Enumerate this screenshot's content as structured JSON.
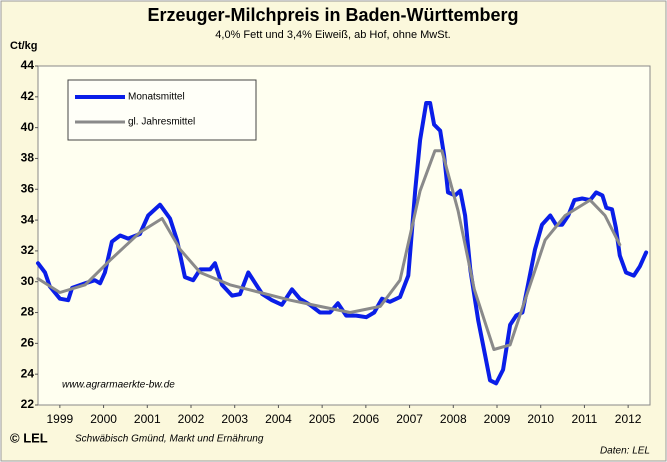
{
  "chart_data": {
    "type": "line",
    "title": "Erzeuger-Milchpreis in Baden-Württemberg",
    "subtitle": "4,0% Fett und 3,4% Eiweiß, ab Hof, ohne MwSt.",
    "y_label": "Ct/kg",
    "source_url": "www.agrarmaerkte-bw.de",
    "logo": "© LEL",
    "publisher": "Schwäbisch Gmünd, Markt und Ernährung",
    "source": "Daten: LEL",
    "legend": "top-left",
    "grid": false,
    "xlim": [
      1999,
      2013
    ],
    "xticks": [
      {
        "value": 1999.5,
        "label": "1999"
      },
      {
        "value": 2000.5,
        "label": "2000"
      },
      {
        "value": 2001.5,
        "label": "2001"
      },
      {
        "value": 2002.5,
        "label": "2002"
      },
      {
        "value": 2003.5,
        "label": "2003"
      },
      {
        "value": 2004.5,
        "label": "2004"
      },
      {
        "value": 2005.5,
        "label": "2005"
      },
      {
        "value": 2006.5,
        "label": "2006"
      },
      {
        "value": 2007.5,
        "label": "2007"
      },
      {
        "value": 2008.5,
        "label": "2008"
      },
      {
        "value": 2009.5,
        "label": "2009"
      },
      {
        "value": 2010.5,
        "label": "2010"
      },
      {
        "value": 2011.5,
        "label": "2011"
      },
      {
        "value": 2012.5,
        "label": "2012"
      }
    ],
    "ylim": [
      22,
      44
    ],
    "yticks": [
      22,
      24,
      26,
      28,
      30,
      32,
      34,
      36,
      38,
      40,
      42,
      44
    ],
    "series": [
      {
        "name": "Monatsmittel",
        "color": "#0a1ee8",
        "width": 4,
        "x": [
          1999.0,
          1999.16,
          1999.27,
          1999.5,
          1999.69,
          1999.78,
          2000.08,
          2000.3,
          2000.42,
          2000.53,
          2000.69,
          2000.88,
          2001.06,
          2001.33,
          2001.52,
          2001.79,
          2002.02,
          2002.18,
          2002.36,
          2002.55,
          2002.71,
          2002.94,
          2003.05,
          2003.21,
          2003.44,
          2003.62,
          2003.81,
          2003.97,
          2004.13,
          2004.35,
          2004.58,
          2004.81,
          2004.99,
          2005.22,
          2005.45,
          2005.68,
          2005.86,
          2006.05,
          2006.28,
          2006.51,
          2006.69,
          2006.87,
          2007.05,
          2007.28,
          2007.47,
          2007.63,
          2007.74,
          2007.88,
          2007.97,
          2008.06,
          2008.2,
          2008.29,
          2008.38,
          2008.54,
          2008.66,
          2008.77,
          2008.89,
          2009.07,
          2009.23,
          2009.34,
          2009.48,
          2009.64,
          2009.8,
          2009.94,
          2010.08,
          2010.21,
          2010.37,
          2010.53,
          2010.72,
          2010.85,
          2010.99,
          2011.13,
          2011.27,
          2011.45,
          2011.63,
          2011.77,
          2011.91,
          2012.0,
          2012.13,
          2012.22,
          2012.31,
          2012.45,
          2012.63,
          2012.77,
          2012.91
        ],
        "values": [
          31.2,
          30.6,
          29.7,
          28.9,
          28.8,
          29.6,
          29.9,
          30.1,
          29.9,
          30.6,
          32.6,
          33.0,
          32.8,
          33.1,
          34.3,
          35.0,
          34.1,
          32.7,
          30.3,
          30.1,
          30.8,
          30.8,
          31.2,
          29.8,
          29.1,
          29.2,
          30.6,
          29.9,
          29.2,
          28.8,
          28.5,
          29.5,
          28.9,
          28.5,
          28.0,
          28.0,
          28.6,
          27.8,
          27.8,
          27.7,
          28.0,
          28.9,
          28.7,
          29.0,
          30.4,
          36.0,
          39.2,
          41.6,
          41.6,
          40.2,
          39.8,
          38.2,
          35.8,
          35.6,
          35.9,
          34.3,
          30.8,
          27.5,
          25.2,
          23.6,
          23.4,
          24.3,
          27.2,
          27.8,
          28.0,
          29.8,
          32.1,
          33.7,
          34.3,
          33.7,
          33.7,
          34.3,
          35.3,
          35.4,
          35.3,
          35.8,
          35.6,
          34.8,
          34.7,
          33.5,
          31.7,
          30.6,
          30.4,
          31.0,
          31.9
        ]
      },
      {
        "name": "gl. Jahresmittel",
        "color": "#8a8a8a",
        "width": 3,
        "x": [
          1999.0,
          1999.5,
          2000.08,
          2000.65,
          2001.33,
          2001.84,
          2002.25,
          2002.71,
          2003.39,
          2004.08,
          2004.77,
          2005.45,
          2006.14,
          2006.83,
          2007.28,
          2007.74,
          2008.08,
          2008.24,
          2008.61,
          2008.98,
          2009.43,
          2009.8,
          2010.14,
          2010.6,
          2011.06,
          2011.63,
          2011.97,
          2012.31
        ],
        "values": [
          30.2,
          29.3,
          29.8,
          31.4,
          33.2,
          34.1,
          32.1,
          30.6,
          29.8,
          29.3,
          28.8,
          28.4,
          28.0,
          28.4,
          30.1,
          35.9,
          38.5,
          38.5,
          34.6,
          29.5,
          25.6,
          25.9,
          28.8,
          32.7,
          34.3,
          35.3,
          34.3,
          32.4
        ]
      }
    ]
  }
}
